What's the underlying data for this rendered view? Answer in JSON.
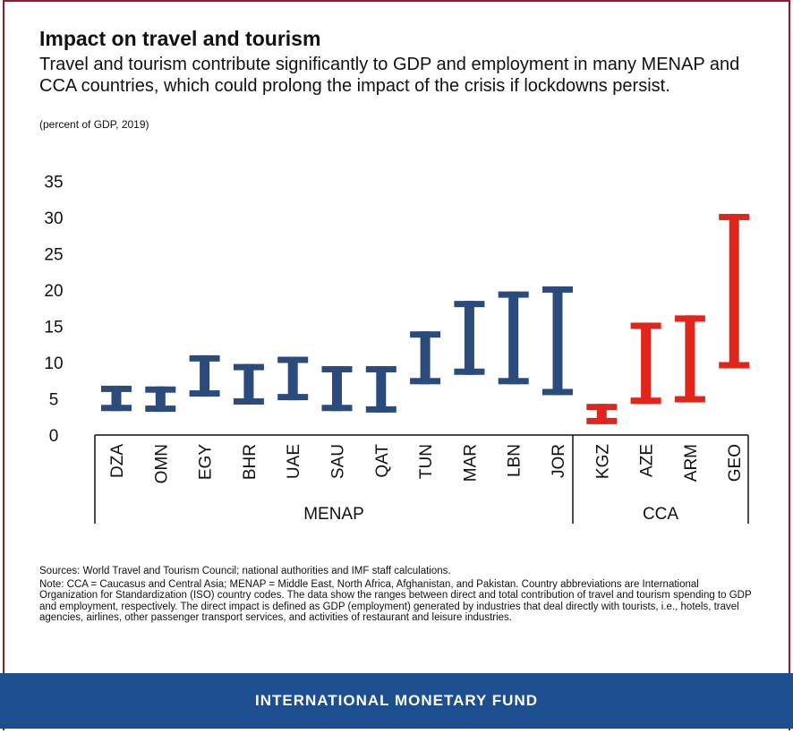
{
  "header": {
    "title": "Impact on travel and tourism",
    "subtitle": "Travel and tourism contribute significantly to GDP and employment in many MENAP and CCA countries, which could prolong the impact of the crisis if lockdowns persist.",
    "unit": "(percent of GDP, 2019)"
  },
  "notes": {
    "sources": "Sources: World Travel and Tourism Council; national authorities and IMF staff calculations.",
    "note": "Note: CCA = Caucasus and Central Asia; MENAP = Middle East, North Africa, Afghanistan, and Pakistan. Country abbreviations are International Organization for Standardization (ISO) country codes. The data show the ranges between direct and total contribution of travel and tourism spending to GDP and employment, respectively. The direct impact is defined as GDP (employment) generated by industries that deal directly with tourists, i.e., hotels, travel agencies, airlines, other passenger transport services, and activities of restaurant and leisure industries."
  },
  "footer": {
    "label": "INTERNATIONAL MONETARY FUND"
  },
  "colors": {
    "menap": "#2a4b7c",
    "cca": "#e1251b",
    "frame": "#8b1f2c",
    "footer": "#1d4e8f"
  },
  "chart_data": {
    "type": "range-bar",
    "ylim": [
      0,
      35
    ],
    "yticks": [
      0,
      5,
      10,
      15,
      20,
      25,
      30,
      35
    ],
    "categories": [
      "DZA",
      "OMN",
      "EGY",
      "BHR",
      "UAE",
      "SAU",
      "QAT",
      "TUN",
      "MAR",
      "LBN",
      "JOR",
      "KGZ",
      "AZE",
      "ARM",
      "GEO"
    ],
    "groups": [
      {
        "name": "MENAP",
        "members": [
          "DZA",
          "OMN",
          "EGY",
          "BHR",
          "UAE",
          "SAU",
          "QAT",
          "TUN",
          "MAR",
          "LBN",
          "JOR"
        ]
      },
      {
        "name": "CCA",
        "members": [
          "KGZ",
          "AZE",
          "ARM",
          "GEO"
        ]
      }
    ],
    "series": [
      {
        "name": "MENAP",
        "color": "#2a4b7c",
        "ranges": [
          {
            "country": "DZA",
            "low": 3.3,
            "high": 6.8
          },
          {
            "country": "OMN",
            "low": 3.2,
            "high": 6.7
          },
          {
            "country": "EGY",
            "low": 5.3,
            "high": 11.0
          },
          {
            "country": "BHR",
            "low": 4.2,
            "high": 9.8
          },
          {
            "country": "UAE",
            "low": 4.8,
            "high": 10.8
          },
          {
            "country": "SAU",
            "low": 3.3,
            "high": 9.5
          },
          {
            "country": "QAT",
            "low": 3.1,
            "high": 9.5
          },
          {
            "country": "TUN",
            "low": 7.0,
            "high": 14.3
          },
          {
            "country": "MAR",
            "low": 8.3,
            "high": 18.5
          },
          {
            "country": "LBN",
            "low": 7.0,
            "high": 19.8
          },
          {
            "country": "JOR",
            "low": 5.5,
            "high": 20.5
          }
        ]
      },
      {
        "name": "CCA",
        "color": "#e1251b",
        "ranges": [
          {
            "country": "KGZ",
            "low": 1.5,
            "high": 4.3
          },
          {
            "country": "AZE",
            "low": 4.3,
            "high": 15.5
          },
          {
            "country": "ARM",
            "low": 4.5,
            "high": 16.5
          },
          {
            "country": "GEO",
            "low": 9.2,
            "high": 30.5
          }
        ]
      }
    ]
  }
}
